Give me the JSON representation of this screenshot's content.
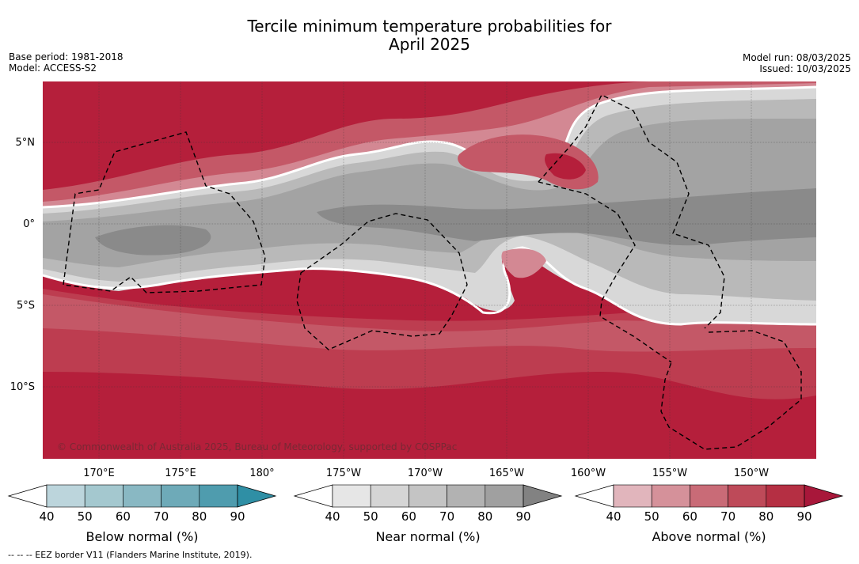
{
  "header": {
    "title_line1": "Tercile minimum temperature probabilities for",
    "title_line2": "April 2025",
    "base_period": "Base period: 1981-2018",
    "model": "Model: ACCESS-S2",
    "model_run": "Model run: 08/03/2025",
    "issued": "Issued: 10/03/2025"
  },
  "map": {
    "lat_labels": [
      "5°N",
      "0°",
      "5°S",
      "10°S"
    ],
    "lon_labels": [
      "170°E",
      "175°E",
      "180°",
      "175°W",
      "170°W",
      "165°W",
      "160°W",
      "155°W",
      "150°W"
    ],
    "copyright": "© Commonwealth of Australia 2025, Bureau of Meteorology, supported by COSPPac",
    "colors": {
      "above": [
        "#e1b5bc",
        "#d5919a",
        "#c96b77",
        "#be4a59",
        "#b52f43",
        "#a8173a"
      ],
      "near": [
        "#e6e6e6",
        "#d5d5d5",
        "#c4c4c4",
        "#b2b2b2",
        "#a0a0a0",
        "#828282"
      ],
      "below": [
        "#bcd5dc",
        "#a4c8cf",
        "#89b8c3",
        "#6eaab8",
        "#4f9cae",
        "#2f8fa5"
      ]
    }
  },
  "colorbars": [
    {
      "label": "Below normal (%)",
      "ticks": [
        "40",
        "50",
        "60",
        "70",
        "80",
        "90"
      ]
    },
    {
      "label": "Near normal (%)",
      "ticks": [
        "40",
        "50",
        "60",
        "70",
        "80",
        "90"
      ]
    },
    {
      "label": "Above normal (%)",
      "ticks": [
        "40",
        "50",
        "60",
        "70",
        "80",
        "90"
      ]
    }
  ],
  "footnote": "--  --  -- EEZ border V11 (Flanders Marine Institute, 2019)."
}
